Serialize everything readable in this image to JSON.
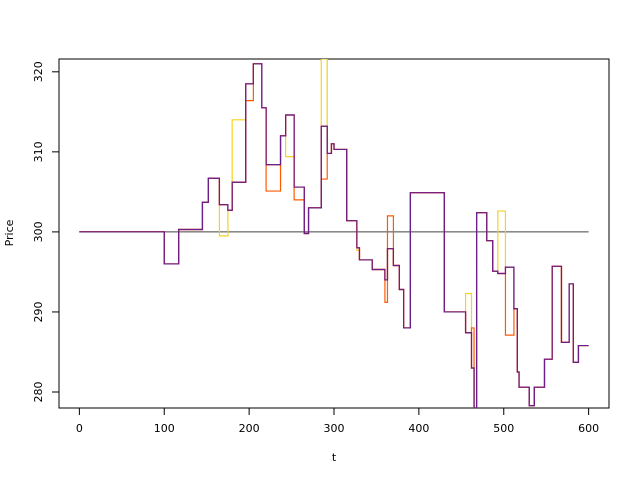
{
  "chart_data": {
    "type": "line",
    "step": true,
    "xlabel": "t",
    "ylabel": "Price",
    "x": [
      0,
      100,
      117,
      145,
      152,
      165,
      175,
      180,
      196,
      205,
      215,
      220,
      237,
      243,
      253,
      265,
      270,
      285,
      292,
      297,
      300,
      315,
      327,
      330,
      345,
      360,
      363,
      370,
      377,
      382,
      390,
      430,
      455,
      462,
      465,
      468,
      480,
      487,
      493,
      502,
      512,
      516,
      518,
      530,
      536,
      548,
      557,
      568,
      577,
      582,
      588,
      600
    ],
    "series": [
      {
        "color": "#f7d21e",
        "values": [
          300,
          296,
          300.3,
          303.7,
          306.7,
          299.5,
          302.7,
          314,
          318.5,
          321,
          315.5,
          308.4,
          312,
          309.4,
          305.6,
          299.8,
          303,
          321.6,
          309.8,
          311,
          310.3,
          301.4,
          297.7,
          296.5,
          295.3,
          294,
          297.9,
          295.8,
          292.8,
          288,
          304.9,
          290,
          292.3,
          283,
          278,
          302.4,
          298.9,
          295.1,
          302.6,
          295.6,
          290.4,
          282.5,
          280.6,
          278.3,
          280.6,
          284.1,
          295.7,
          286.2,
          293.5,
          283.7,
          285.8,
          285.8
        ]
      },
      {
        "color": "#ff5a00",
        "values": [
          300,
          296,
          300.3,
          303.7,
          306.7,
          303.4,
          302.7,
          306.2,
          316.4,
          321,
          315.5,
          305.1,
          312,
          314.6,
          304,
          299.8,
          303,
          306.6,
          309.8,
          311,
          310.3,
          301.4,
          298,
          296.5,
          295.3,
          291.2,
          302,
          295.8,
          292.8,
          288,
          304.9,
          290,
          287.4,
          288,
          278,
          302.4,
          298.9,
          295.1,
          294.8,
          287.1,
          290.4,
          282.5,
          280.6,
          278.3,
          280.6,
          284.1,
          295.7,
          286.2,
          293.5,
          283.7,
          285.8,
          285.8
        ]
      },
      {
        "color": "#d0102a",
        "values": [
          300,
          296,
          300.3,
          303.7,
          306.7,
          303.4,
          302.7,
          306.2,
          318.5,
          321,
          315.5,
          308.4,
          312,
          314.6,
          305.6,
          299.8,
          303,
          313.2,
          309.8,
          311,
          310.3,
          301.4,
          298,
          296.5,
          295.3,
          294,
          297.9,
          295.8,
          292.8,
          288,
          304.9,
          290,
          287.4,
          283,
          278,
          302.4,
          298.9,
          295.1,
          294.8,
          295.6,
          290.4,
          282.5,
          280.6,
          278.3,
          280.6,
          284.1,
          295.7,
          286.2,
          293.5,
          283.7,
          285.8,
          285.8
        ]
      },
      {
        "color": "#6a1f8a",
        "values": [
          300,
          296,
          300.3,
          303.7,
          306.7,
          303.4,
          302.7,
          306.2,
          318.5,
          321,
          315.5,
          308.4,
          312,
          314.6,
          305.6,
          299.8,
          303,
          313.2,
          309.8,
          311,
          310.3,
          301.4,
          298,
          296.5,
          295.3,
          294,
          297.9,
          295.8,
          292.8,
          288,
          304.9,
          290,
          287.4,
          283,
          278,
          302.4,
          298.9,
          295.1,
          294.8,
          295.6,
          290.4,
          282.5,
          280.6,
          278.3,
          280.6,
          284.1,
          295.7,
          286.2,
          293.5,
          283.7,
          285.8,
          285.8
        ]
      }
    ],
    "hline": 300,
    "hline_color": "#444444",
    "xlim": [
      -24,
      624
    ],
    "ylim": [
      278,
      321.6
    ],
    "xticks": [
      0,
      100,
      200,
      300,
      400,
      500,
      600
    ],
    "yticks": [
      280,
      290,
      300,
      310,
      320
    ]
  }
}
